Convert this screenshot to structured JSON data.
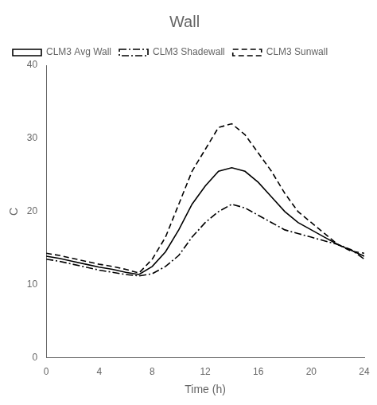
{
  "chart_data": {
    "type": "line",
    "title": "Wall",
    "x_label": "Time (h)",
    "y_label": "C",
    "x": [
      0,
      1,
      2,
      3,
      4,
      5,
      6,
      7,
      8,
      9,
      10,
      11,
      12,
      13,
      14,
      15,
      16,
      17,
      18,
      19,
      20,
      21,
      22,
      23,
      24
    ],
    "series": [
      {
        "name": "CLM3 Avg Wall",
        "color": "#000000",
        "line_style": "solid",
        "values": [
          13.9,
          13.6,
          13.2,
          12.8,
          12.4,
          12.1,
          11.7,
          11.4,
          12.5,
          14.5,
          17.5,
          21.0,
          23.5,
          25.5,
          26.0,
          25.5,
          24.0,
          22.0,
          20.0,
          18.5,
          17.5,
          16.5,
          15.5,
          14.7,
          13.9
        ]
      },
      {
        "name": "CLM3 Shadewall",
        "color": "#000000",
        "line_style": "dashdot",
        "values": [
          13.5,
          13.2,
          12.8,
          12.4,
          12.0,
          11.7,
          11.4,
          11.2,
          11.5,
          12.5,
          14.0,
          16.5,
          18.5,
          20.0,
          21.0,
          20.5,
          19.5,
          18.5,
          17.5,
          17.0,
          16.5,
          16.0,
          15.5,
          14.8,
          13.5
        ]
      },
      {
        "name": "CLM3 Sunwall",
        "color": "#000000",
        "line_style": "dashed",
        "values": [
          14.3,
          14.0,
          13.6,
          13.2,
          12.8,
          12.5,
          12.1,
          11.6,
          13.5,
          16.5,
          21.0,
          25.5,
          28.5,
          31.5,
          32.0,
          30.5,
          28.0,
          25.5,
          22.5,
          20.0,
          18.5,
          17.0,
          15.5,
          14.6,
          14.3
        ]
      }
    ],
    "xlim": [
      0,
      24
    ],
    "ylim": [
      0,
      40
    ],
    "xticks": [
      0,
      4,
      8,
      12,
      16,
      20,
      24
    ],
    "yticks": [
      0,
      10,
      20,
      30,
      40
    ],
    "grid": false,
    "legend": "upper left"
  }
}
